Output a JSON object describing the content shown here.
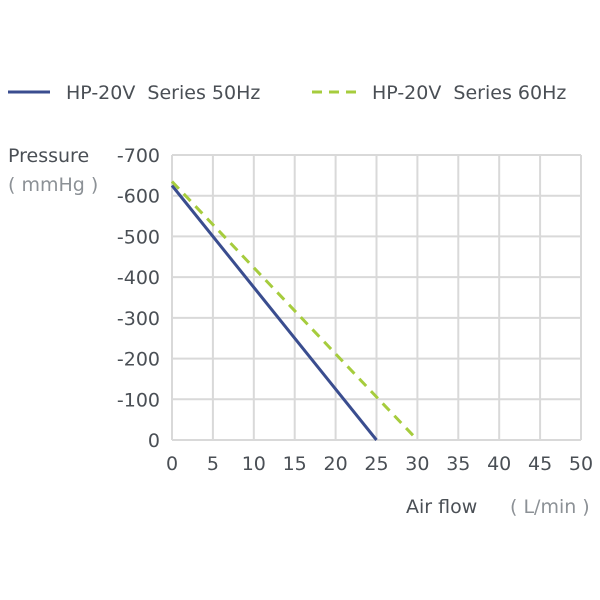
{
  "chart_data": {
    "type": "line",
    "xlabel": "Air flow",
    "xlabel_unit": "( L/min )",
    "ylabel": "Pressure",
    "ylabel_unit": "( mmHg )",
    "xlim": [
      0,
      50
    ],
    "ylim": [
      0,
      -700
    ],
    "x_ticks": [
      0,
      5,
      10,
      15,
      20,
      25,
      30,
      35,
      40,
      45,
      50
    ],
    "y_ticks": [
      0,
      -100,
      -200,
      -300,
      -400,
      -500,
      -600,
      -700
    ],
    "x_tick_labels": [
      "0",
      "5",
      "10",
      "15",
      "20",
      "25",
      "30",
      "35",
      "40",
      "45",
      "50"
    ],
    "y_tick_labels": [
      "0",
      "-100",
      "-200",
      "-300",
      "-400",
      "-500",
      "-600",
      "-700"
    ],
    "grid": true,
    "legend_position": "top",
    "series": [
      {
        "name": "HP-20V  Series 50Hz",
        "color": "#3a4d8f",
        "style": "solid",
        "points": [
          [
            0,
            -625
          ],
          [
            25,
            0
          ]
        ]
      },
      {
        "name": "HP-20V  Series 60Hz",
        "color": "#a6cc3d",
        "style": "dashed",
        "points": [
          [
            0,
            -635
          ],
          [
            30,
            0
          ]
        ]
      }
    ]
  }
}
